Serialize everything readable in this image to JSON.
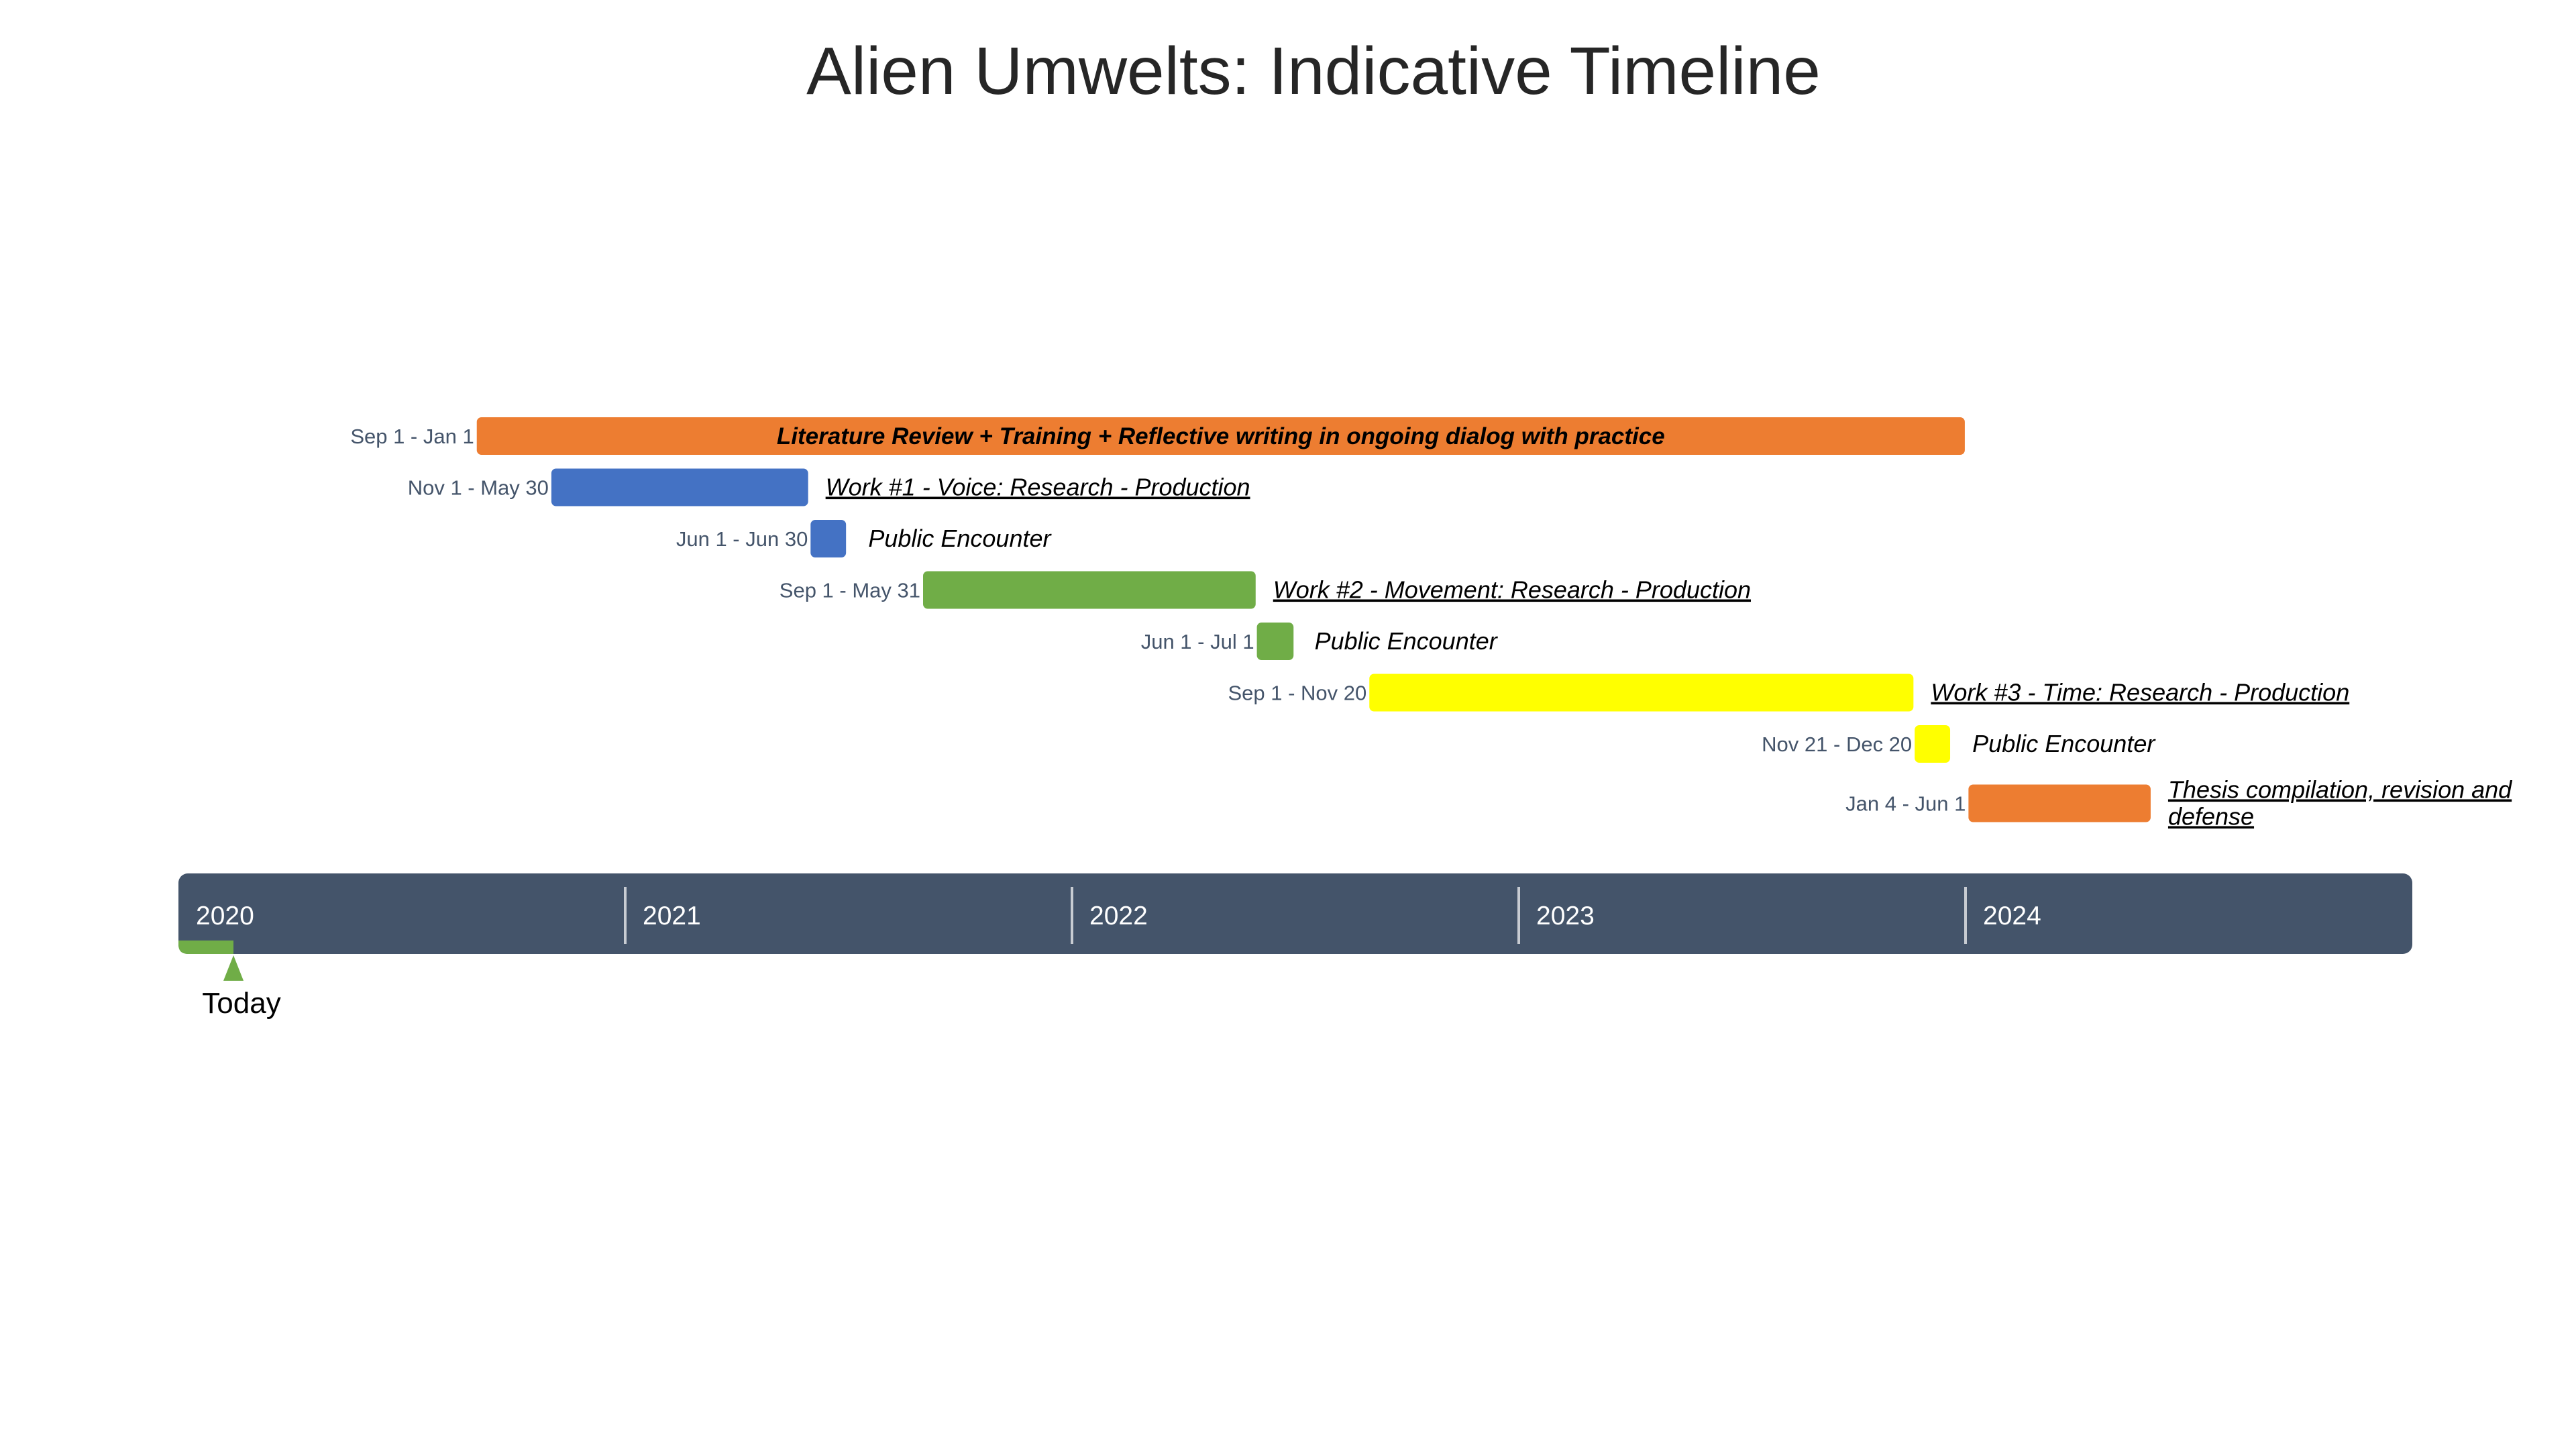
{
  "chart_data": {
    "type": "timeline",
    "title": "Alien Umwelts: Indicative Timeline",
    "axis": {
      "start": "2020-01-01",
      "end": "2025-01-01",
      "years": [
        "2020",
        "2021",
        "2022",
        "2023",
        "2024"
      ],
      "color": "#44546a"
    },
    "today": {
      "label": "Today",
      "date": "2020-02-15",
      "color": "#70ad47"
    },
    "tasks": [
      {
        "name": "Literature Review + Training + Reflective writing in ongoing dialog with practice",
        "range": "Sep 1 - Jan 1",
        "start": "2020-09-01",
        "end": "2024-01-01",
        "color": "#ed7d31",
        "label_position": "inside",
        "underline": false
      },
      {
        "name": "Work #1 - Voice: Research - Production",
        "range": "Nov 1 - May 30",
        "start": "2020-11-01",
        "end": "2021-05-30",
        "color": "#4472c4",
        "label_position": "right",
        "underline": true
      },
      {
        "name": "Public Encounter",
        "range": "Jun 1 - Jun 30",
        "start": "2021-06-01",
        "end": "2021-06-30",
        "color": "#4472c4",
        "label_position": "right",
        "underline": false
      },
      {
        "name": "Work #2 - Movement: Research - Production",
        "range": "Sep 1 - May 31",
        "start": "2021-09-01",
        "end": "2022-05-31",
        "color": "#70ad47",
        "label_position": "right",
        "underline": true
      },
      {
        "name": "Public Encounter",
        "range": "Jun 1 - Jul 1",
        "start": "2022-06-01",
        "end": "2022-07-01",
        "color": "#70ad47",
        "label_position": "right",
        "underline": false
      },
      {
        "name": "Work #3 - Time: Research - Production",
        "range": "Sep 1 - Nov 20",
        "start": "2022-09-01",
        "end": "2023-11-20",
        "color": "#ffff00",
        "label_position": "right",
        "underline": true
      },
      {
        "name": "Public Encounter",
        "range": "Nov 21 - Dec 20",
        "start": "2023-11-21",
        "end": "2023-12-20",
        "color": "#ffff00",
        "label_position": "right",
        "underline": false
      },
      {
        "name": "Thesis compilation, revision and defense",
        "name_lines": [
          "Thesis compilation, revision and",
          "defense"
        ],
        "range": "Jan 4 - Jun 1",
        "start": "2024-01-04",
        "end": "2024-06-01",
        "color": "#ed7d31",
        "label_position": "right",
        "underline": true
      }
    ]
  }
}
